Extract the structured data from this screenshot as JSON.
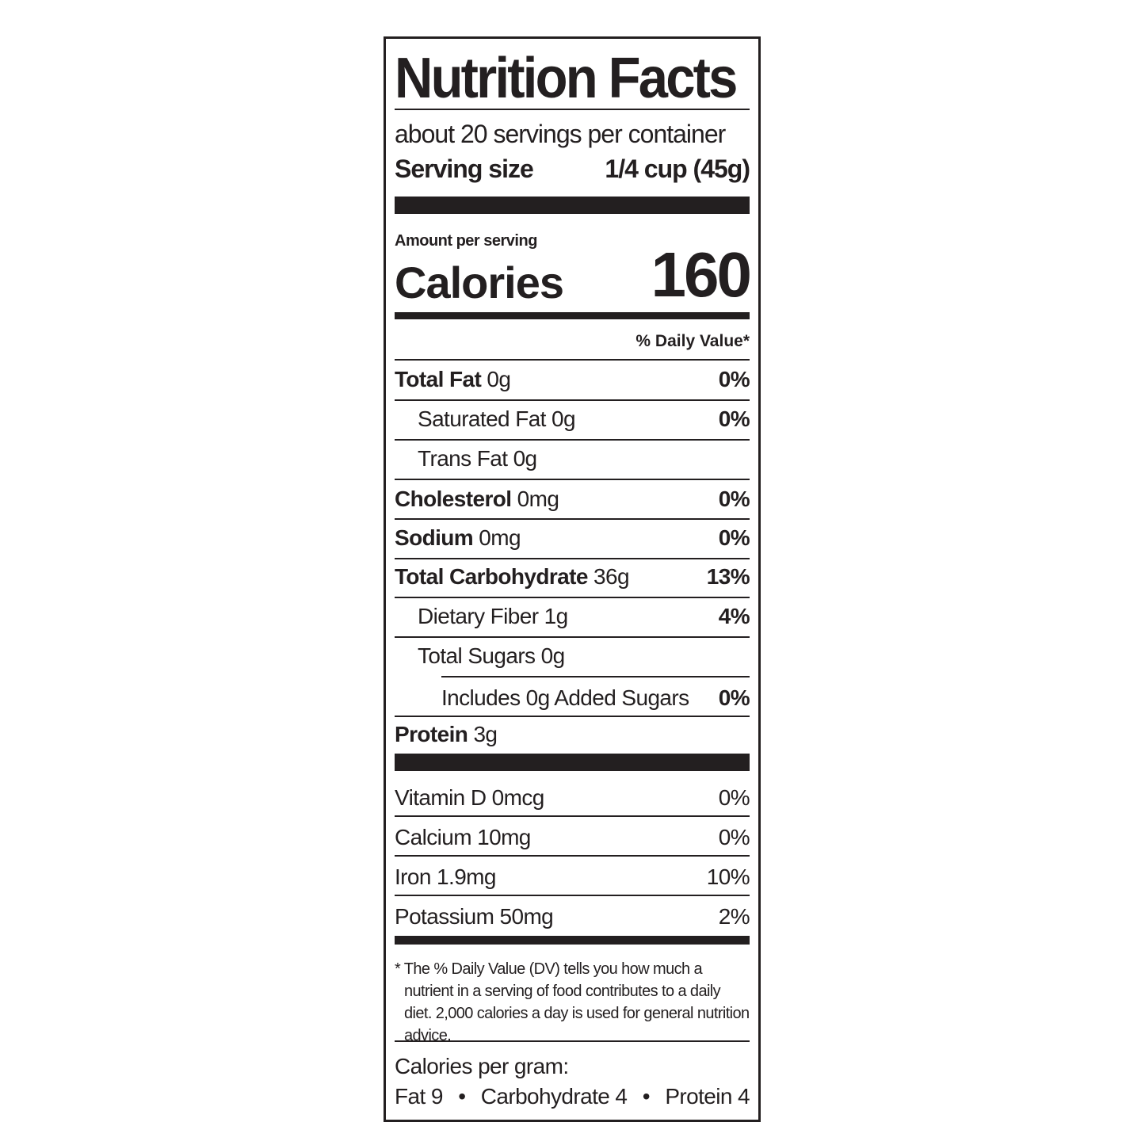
{
  "title": "Nutrition Facts",
  "servings_per_container": "about 20 servings per container",
  "serving_size": {
    "label": "Serving size",
    "value": "1/4 cup (45g)"
  },
  "amount_per_serving": "Amount per serving",
  "calories": {
    "label": "Calories",
    "value": "160"
  },
  "daily_value_header": "% Daily Value*",
  "nutrients": [
    {
      "name": "Total Fat",
      "amount": "0g",
      "dv": "0%"
    },
    {
      "name": "Saturated Fat",
      "amount": "0g",
      "dv": "0%"
    },
    {
      "name": "Trans Fat",
      "amount": "0g",
      "dv": ""
    },
    {
      "name": "Cholesterol",
      "amount": "0mg",
      "dv": "0%"
    },
    {
      "name": "Sodium",
      "amount": "0mg",
      "dv": "0%"
    },
    {
      "name": "Total Carbohydrate",
      "amount": "36g",
      "dv": "13%"
    },
    {
      "name": "Dietary Fiber",
      "amount": "1g",
      "dv": "4%"
    },
    {
      "name": "Total Sugars",
      "amount": "0g",
      "dv": ""
    },
    {
      "name": "Includes 0g Added Sugars",
      "amount": "",
      "dv": "0%"
    },
    {
      "name": "Protein",
      "amount": "3g",
      "dv": ""
    }
  ],
  "vitamins": [
    {
      "name": "Vitamin D",
      "amount": "0mcg",
      "dv": "0%"
    },
    {
      "name": "Calcium",
      "amount": "10mg",
      "dv": "0%"
    },
    {
      "name": "Iron",
      "amount": "1.9mg",
      "dv": "10%"
    },
    {
      "name": "Potassium",
      "amount": "50mg",
      "dv": "2%"
    }
  ],
  "footnote": "* The % Daily Value (DV) tells you how much a nutrient in a serving of food contributes to a daily diet. 2,000 calories a day is used for general nutrition advice.",
  "calories_per_gram": {
    "label": "Calories per gram:",
    "fat": "Fat 9",
    "carbohydrate": "Carbohydrate 4",
    "protein": "Protein 4",
    "separator": "•"
  }
}
